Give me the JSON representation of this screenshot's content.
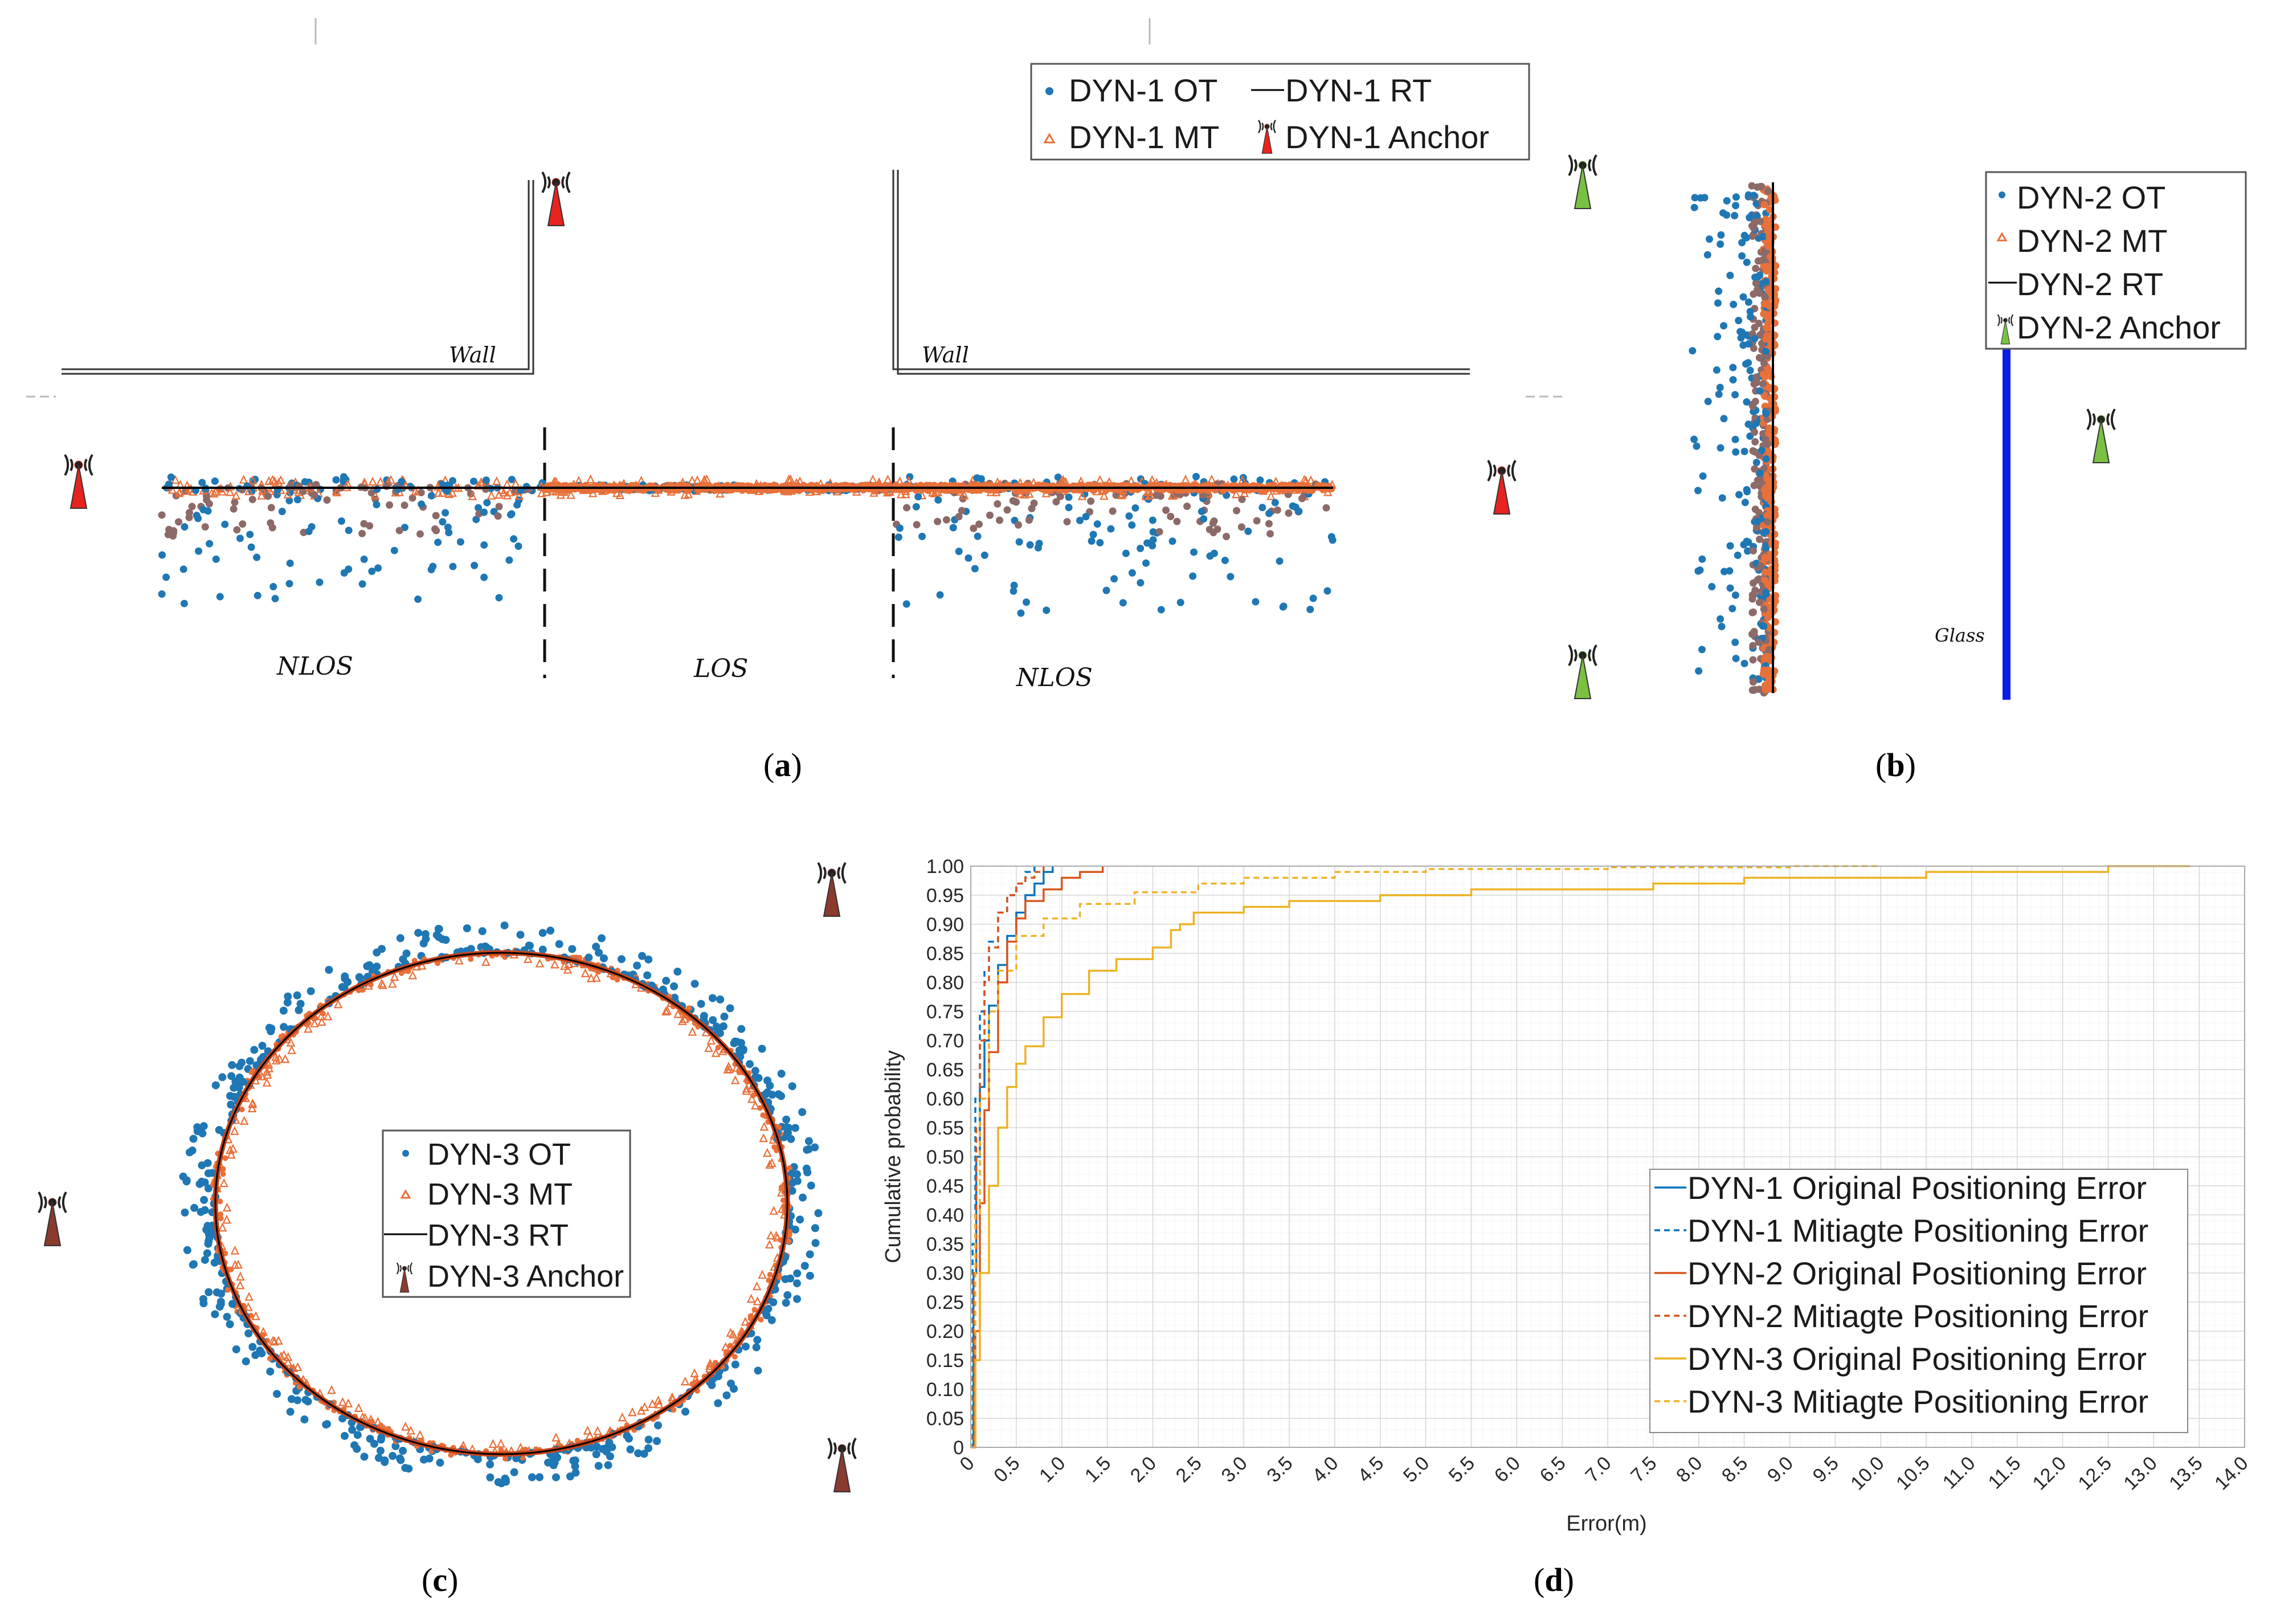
{
  "panels": {
    "a": {
      "caption_open": "(",
      "caption_letter": "a",
      "caption_close": ")",
      "legend": {
        "ot": "DYN-1 OT",
        "rt": "DYN-1 RT",
        "mt": "DYN-1 MT",
        "anchor": "DYN-1 Anchor"
      },
      "wall_left": "Wall",
      "wall_right": "Wall",
      "zone_left": "NLOS",
      "zone_mid": "LOS",
      "zone_right": "NLOS",
      "colors": {
        "anchor": "#e8231d"
      }
    },
    "b": {
      "caption_open": "(",
      "caption_letter": "b",
      "caption_close": ")",
      "legend": {
        "ot": "DYN-2 OT",
        "mt": "DYN-2 MT",
        "rt": "DYN-2 RT",
        "anchor": "DYN-2 Anchor"
      },
      "glass": "Glass",
      "colors": {
        "anchor": "#7ac143",
        "glass": "#0a1ee6"
      }
    },
    "c": {
      "caption_open": "(",
      "caption_letter": "c",
      "caption_close": ")",
      "legend": {
        "ot": "DYN-3 OT",
        "mt": "DYN-3 MT",
        "rt": "DYN-3 RT",
        "anchor": "DYN-3 Anchor"
      },
      "colors": {
        "anchor": "#8b3a2e"
      }
    },
    "d": {
      "caption_open": "(",
      "caption_letter": "d",
      "caption_close": ")"
    }
  },
  "colors": {
    "ot": "#1f77b4",
    "mt": "#e8703a",
    "rt": "#000000",
    "mix": "#8c6a68"
  },
  "chart_data": {
    "type": "line",
    "title": "",
    "xlabel": "Error(m)",
    "ylabel": "Cumulative probability",
    "xlim": [
      0,
      14
    ],
    "ylim": [
      0,
      1
    ],
    "x_ticks": [
      "0",
      "0.5",
      "1.0",
      "1.5",
      "2.0",
      "2.5",
      "3.0",
      "3.5",
      "4.0",
      "4.5",
      "5.0",
      "5.5",
      "6.0",
      "6.5",
      "7.0",
      "7.5",
      "8.0",
      "8.5",
      "9.0",
      "9.5",
      "10.0",
      "10.5",
      "11.0",
      "11.5",
      "12.0",
      "12.5",
      "13.0",
      "13.5",
      "14.0"
    ],
    "y_ticks": [
      "0",
      "0.05",
      "0.10",
      "0.15",
      "0.20",
      "0.25",
      "0.30",
      "0.35",
      "0.40",
      "0.45",
      "0.50",
      "0.55",
      "0.60",
      "0.65",
      "0.70",
      "0.75",
      "0.80",
      "0.85",
      "0.90",
      "0.95",
      "1.00"
    ],
    "grid": true,
    "legend_position": "bottom-right",
    "series": [
      {
        "name": "DYN-1 Original Positioning Error",
        "color": "#0072bd",
        "dash": false,
        "x": [
          0,
          0.03,
          0.06,
          0.1,
          0.15,
          0.2,
          0.3,
          0.4,
          0.5,
          0.6,
          0.7,
          0.8,
          0.9
        ],
        "y": [
          0,
          0.3,
          0.5,
          0.62,
          0.7,
          0.76,
          0.83,
          0.88,
          0.92,
          0.95,
          0.97,
          0.99,
          1.0
        ]
      },
      {
        "name": "DYN-1 Mitiagte Positioning Error",
        "color": "#0072bd",
        "dash": true,
        "x": [
          0,
          0.02,
          0.05,
          0.1,
          0.15,
          0.2,
          0.3,
          0.4,
          0.5,
          0.6,
          0.7
        ],
        "y": [
          0,
          0.35,
          0.6,
          0.75,
          0.82,
          0.87,
          0.92,
          0.95,
          0.97,
          0.99,
          1.0
        ]
      },
      {
        "name": "DYN-2 Original Positioning Error",
        "color": "#d95319",
        "dash": false,
        "x": [
          0,
          0.05,
          0.1,
          0.15,
          0.2,
          0.3,
          0.4,
          0.5,
          0.6,
          0.8,
          1.0,
          1.2,
          1.45
        ],
        "y": [
          0,
          0.2,
          0.42,
          0.58,
          0.68,
          0.8,
          0.87,
          0.91,
          0.94,
          0.96,
          0.98,
          0.99,
          1.0
        ]
      },
      {
        "name": "DYN-2 Mitiagte Positioning Error",
        "color": "#d95319",
        "dash": true,
        "x": [
          0,
          0.03,
          0.06,
          0.1,
          0.15,
          0.2,
          0.3,
          0.4,
          0.5,
          0.6,
          0.7,
          0.8
        ],
        "y": [
          0,
          0.3,
          0.55,
          0.7,
          0.8,
          0.86,
          0.92,
          0.95,
          0.97,
          0.98,
          0.99,
          1.0
        ]
      },
      {
        "name": "DYN-3 Original Positioning Error",
        "color": "#edb120",
        "dash": false,
        "x": [
          0,
          0.05,
          0.1,
          0.2,
          0.3,
          0.4,
          0.5,
          0.6,
          0.8,
          1.0,
          1.3,
          1.6,
          2.0,
          2.2,
          2.3,
          2.45,
          2.6,
          3.0,
          3.5,
          4.5,
          5.5,
          6.5,
          7.5,
          8.5,
          9.5,
          10.5,
          11.5,
          12.5,
          13.4
        ],
        "y": [
          0,
          0.15,
          0.3,
          0.45,
          0.55,
          0.62,
          0.66,
          0.69,
          0.74,
          0.78,
          0.82,
          0.84,
          0.86,
          0.89,
          0.9,
          0.92,
          0.92,
          0.93,
          0.94,
          0.95,
          0.96,
          0.96,
          0.97,
          0.98,
          0.98,
          0.99,
          0.99,
          1.0,
          1.0
        ]
      },
      {
        "name": "DYN-3 Mitiagte Positioning Error",
        "color": "#edb120",
        "dash": true,
        "x": [
          0,
          0.05,
          0.1,
          0.2,
          0.3,
          0.5,
          0.8,
          1.2,
          1.8,
          2.5,
          3.0,
          4.0,
          5.0,
          7.0,
          9.0,
          10.0
        ],
        "y": [
          0,
          0.4,
          0.6,
          0.75,
          0.82,
          0.88,
          0.91,
          0.935,
          0.955,
          0.97,
          0.98,
          0.99,
          0.995,
          0.998,
          1.0,
          1.0
        ]
      }
    ]
  }
}
